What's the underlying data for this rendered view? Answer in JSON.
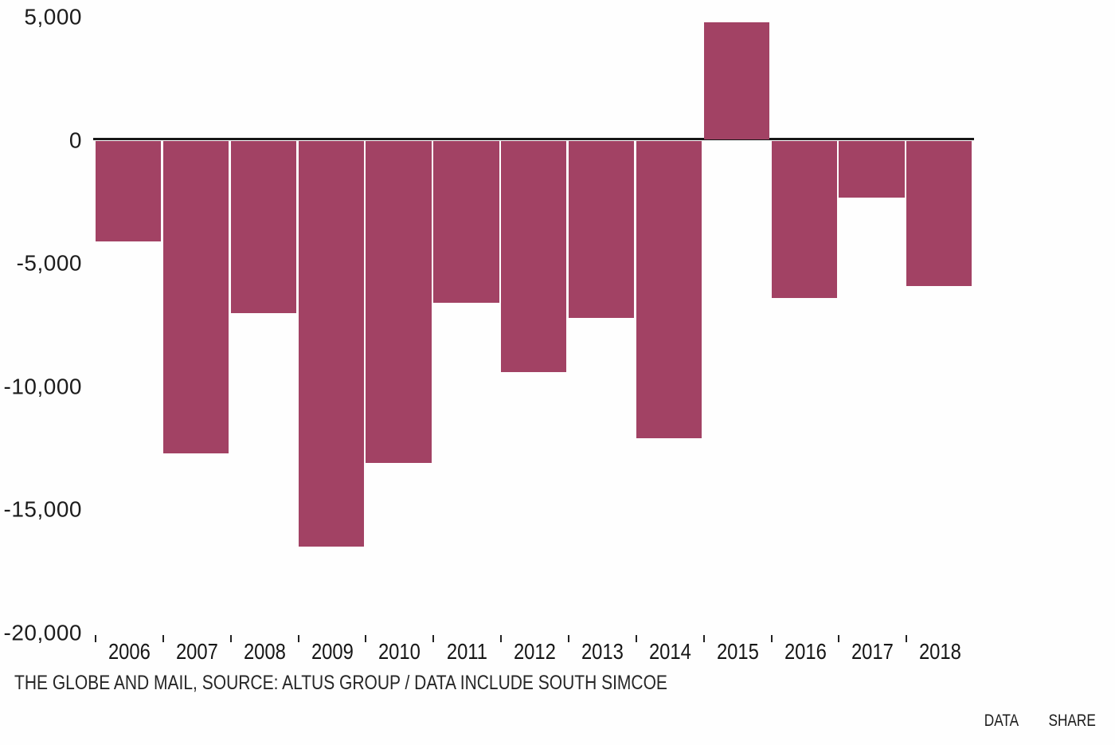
{
  "chart_data": {
    "type": "bar",
    "title": "",
    "xlabel": "",
    "ylabel": "",
    "categories": [
      "2006",
      "2007",
      "2008",
      "2009",
      "2010",
      "2011",
      "2012",
      "2013",
      "2014",
      "2015",
      "2016",
      "2017",
      "2018"
    ],
    "values": [
      -4100,
      -12700,
      -7000,
      -16500,
      -13100,
      -6600,
      -9400,
      -7200,
      -12100,
      4800,
      -6400,
      -2300,
      -5900
    ],
    "ylim": [
      -20000,
      5000
    ],
    "yticks": [
      5000,
      0,
      -5000,
      -10000,
      -15000,
      -20000
    ],
    "ytick_labels": [
      "5,000",
      "0",
      "-5,000",
      "-10,000",
      "-15,000",
      "-20,000"
    ],
    "grid": false,
    "legend": "none",
    "bar_color": "#a24264",
    "axis_color": "#171717",
    "source": "THE GLOBE AND MAIL, SOURCE: ALTUS GROUP / DATA INCLUDE SOUTH SIMCOE"
  },
  "actions": {
    "data_label": "DATA",
    "share_label": "SHARE"
  }
}
